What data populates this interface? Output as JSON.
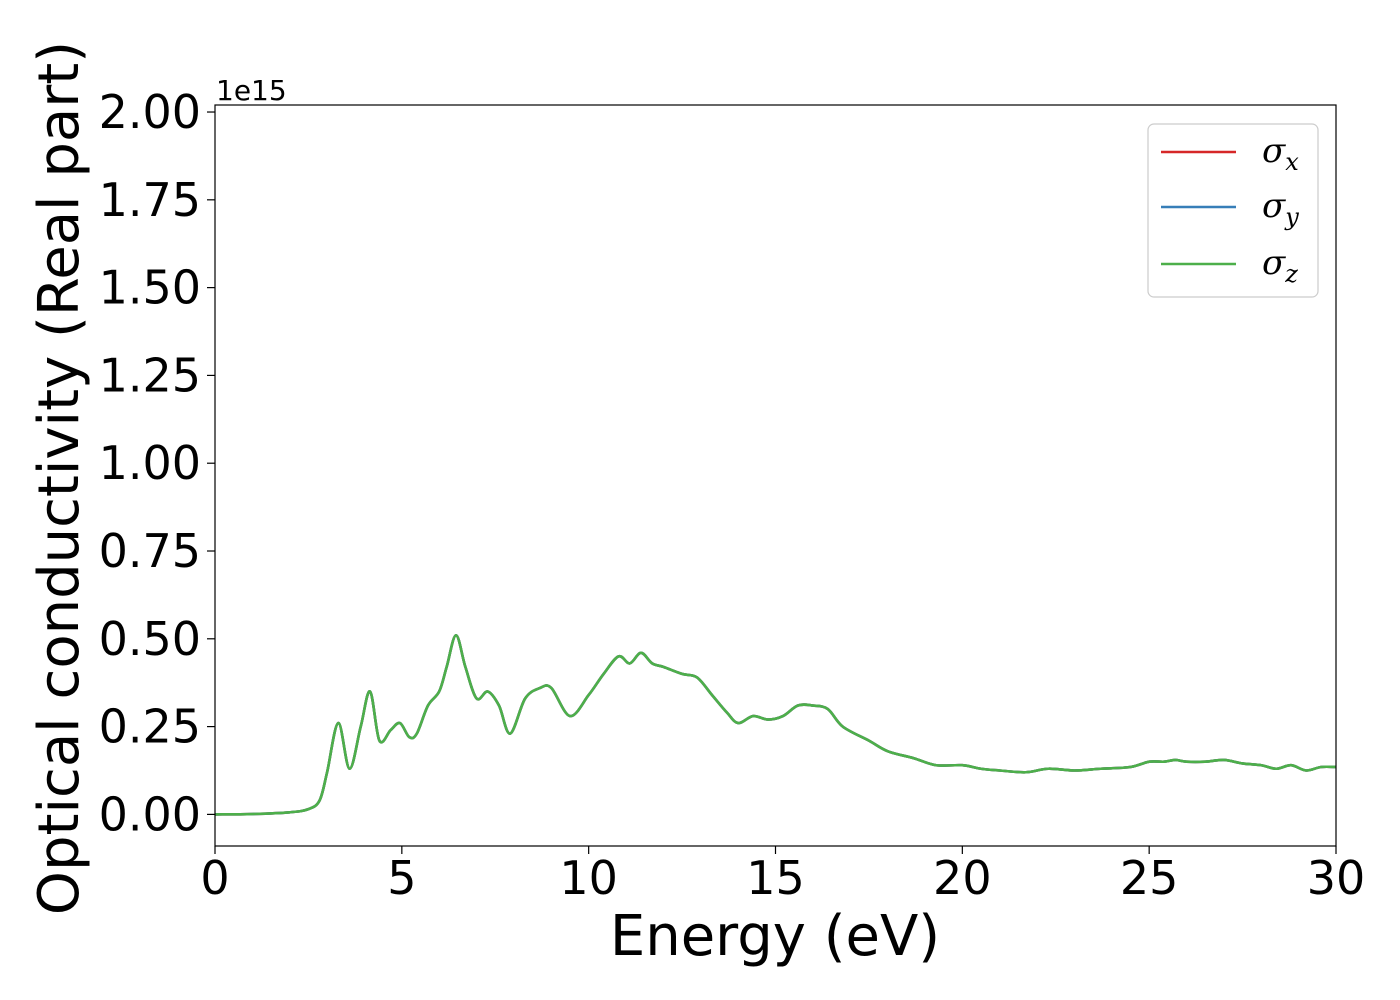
{
  "chart_data": {
    "type": "line",
    "title": "",
    "xlabel": "Energy (eV)",
    "ylabel": "Optical conductivity (Real part)",
    "y_offset_label": "1e15",
    "xlim": [
      0,
      30
    ],
    "ylim": [
      -0.09,
      2.02
    ],
    "x_ticks": [
      "0",
      "5",
      "10",
      "15",
      "20",
      "25",
      "30"
    ],
    "x_tick_values": [
      0,
      5,
      10,
      15,
      20,
      25,
      30
    ],
    "y_ticks": [
      "0.00",
      "0.25",
      "0.50",
      "0.75",
      "1.00",
      "1.25",
      "1.50",
      "1.75",
      "2.00"
    ],
    "y_tick_values": [
      0,
      0.25,
      0.5,
      0.75,
      1.0,
      1.25,
      1.5,
      1.75,
      2.0
    ],
    "grid": false,
    "legend_position": "top-right",
    "x": [
      0,
      1,
      2,
      2.5,
      2.8,
      3.0,
      3.3,
      3.6,
      3.9,
      4.15,
      4.4,
      4.7,
      4.95,
      5.2,
      5.4,
      5.7,
      6.0,
      6.2,
      6.45,
      6.7,
      7.0,
      7.3,
      7.6,
      7.9,
      8.3,
      8.7,
      9.0,
      9.5,
      10.0,
      10.4,
      10.8,
      11.1,
      11.4,
      11.7,
      12.0,
      12.5,
      12.9,
      13.3,
      13.7,
      14.0,
      14.4,
      14.8,
      15.2,
      15.6,
      16.0,
      16.4,
      16.8,
      17.5,
      18.0,
      18.7,
      19.3,
      20.0,
      20.5,
      21.0,
      21.7,
      22.3,
      23.0,
      23.7,
      24.5,
      25.0,
      25.4,
      25.7,
      26.0,
      26.5,
      27.0,
      27.5,
      28.0,
      28.4,
      28.8,
      29.2,
      29.6,
      30.0
    ],
    "series": [
      {
        "name": "σx",
        "color": "#d62728",
        "values": [
          0,
          0.001,
          0.006,
          0.015,
          0.04,
          0.12,
          0.26,
          0.13,
          0.25,
          0.35,
          0.21,
          0.24,
          0.26,
          0.22,
          0.23,
          0.31,
          0.35,
          0.42,
          0.51,
          0.42,
          0.33,
          0.35,
          0.31,
          0.23,
          0.33,
          0.36,
          0.36,
          0.28,
          0.34,
          0.4,
          0.45,
          0.43,
          0.46,
          0.43,
          0.42,
          0.4,
          0.39,
          0.34,
          0.29,
          0.26,
          0.28,
          0.27,
          0.28,
          0.31,
          0.31,
          0.3,
          0.25,
          0.21,
          0.18,
          0.16,
          0.14,
          0.14,
          0.13,
          0.125,
          0.12,
          0.13,
          0.125,
          0.13,
          0.135,
          0.15,
          0.15,
          0.155,
          0.15,
          0.15,
          0.155,
          0.145,
          0.14,
          0.13,
          0.14,
          0.125,
          0.135,
          0.135
        ]
      },
      {
        "name": "σy",
        "color": "#377eb8",
        "values": [
          0,
          0.001,
          0.006,
          0.015,
          0.04,
          0.12,
          0.26,
          0.13,
          0.25,
          0.35,
          0.21,
          0.24,
          0.26,
          0.22,
          0.23,
          0.31,
          0.35,
          0.42,
          0.51,
          0.42,
          0.33,
          0.35,
          0.31,
          0.23,
          0.33,
          0.36,
          0.36,
          0.28,
          0.34,
          0.4,
          0.45,
          0.43,
          0.46,
          0.43,
          0.42,
          0.4,
          0.39,
          0.34,
          0.29,
          0.26,
          0.28,
          0.27,
          0.28,
          0.31,
          0.31,
          0.3,
          0.25,
          0.21,
          0.18,
          0.16,
          0.14,
          0.14,
          0.13,
          0.125,
          0.12,
          0.13,
          0.125,
          0.13,
          0.135,
          0.15,
          0.15,
          0.155,
          0.15,
          0.15,
          0.155,
          0.145,
          0.14,
          0.13,
          0.14,
          0.125,
          0.135,
          0.135
        ]
      },
      {
        "name": "σz",
        "color": "#4daf4a",
        "values": [
          0,
          0.001,
          0.006,
          0.015,
          0.04,
          0.12,
          0.26,
          0.13,
          0.25,
          0.35,
          0.21,
          0.24,
          0.26,
          0.22,
          0.23,
          0.31,
          0.35,
          0.42,
          0.51,
          0.42,
          0.33,
          0.35,
          0.31,
          0.23,
          0.33,
          0.36,
          0.36,
          0.28,
          0.34,
          0.4,
          0.45,
          0.43,
          0.46,
          0.43,
          0.42,
          0.4,
          0.39,
          0.34,
          0.29,
          0.26,
          0.28,
          0.27,
          0.28,
          0.31,
          0.31,
          0.3,
          0.25,
          0.21,
          0.18,
          0.16,
          0.14,
          0.14,
          0.13,
          0.125,
          0.12,
          0.13,
          0.125,
          0.13,
          0.135,
          0.15,
          0.15,
          0.155,
          0.15,
          0.15,
          0.155,
          0.145,
          0.14,
          0.13,
          0.14,
          0.125,
          0.135,
          0.135
        ]
      }
    ],
    "legend": [
      {
        "symbol": "σ",
        "subscript": "x",
        "color": "#d62728"
      },
      {
        "symbol": "σ",
        "subscript": "y",
        "color": "#377eb8"
      },
      {
        "symbol": "σ",
        "subscript": "z",
        "color": "#4daf4a"
      }
    ]
  }
}
